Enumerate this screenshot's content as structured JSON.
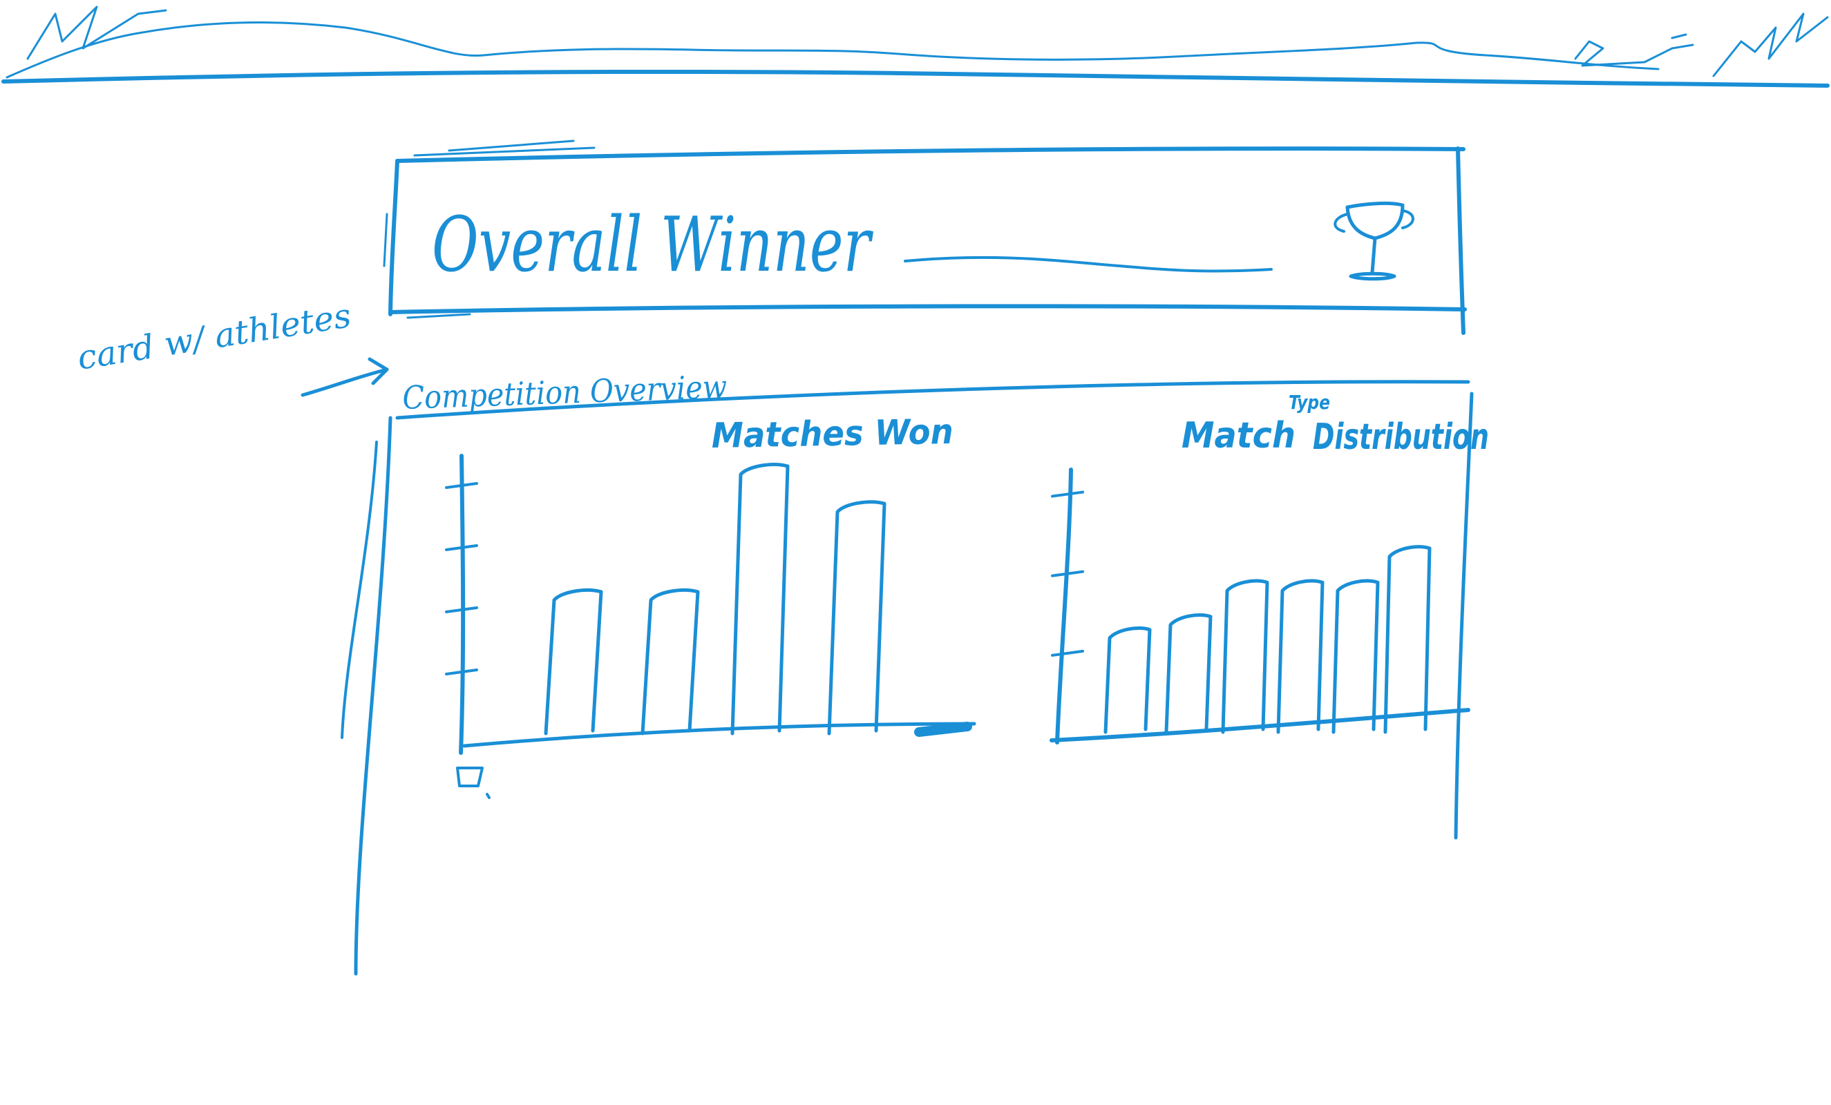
{
  "header_card": {
    "title": "Overall Winner",
    "icon": "trophy-icon"
  },
  "side_note": {
    "text": "card w/ athletes"
  },
  "overview": {
    "title": "Competition Overview"
  },
  "chart_data": [
    {
      "type": "bar",
      "title": "Matches Won",
      "categories": [
        "",
        "",
        "",
        ""
      ],
      "values": [
        5.3,
        5.3,
        10.0,
        8.6
      ],
      "ylim": [
        0,
        10
      ],
      "xlabel": "",
      "ylabel": ""
    },
    {
      "type": "bar",
      "title": "Match Type Distribution",
      "title_main": "Match",
      "title_insert": "Type",
      "title_end": "Distribution",
      "categories": [
        "",
        "",
        "",
        "",
        "",
        ""
      ],
      "values": [
        3.9,
        4.4,
        5.7,
        5.7,
        5.7,
        7.0
      ],
      "ylim": [
        0,
        10
      ],
      "xlabel": "",
      "ylabel": ""
    }
  ],
  "colors": {
    "ink": "#1a8fd6",
    "background": "#ffffff"
  }
}
